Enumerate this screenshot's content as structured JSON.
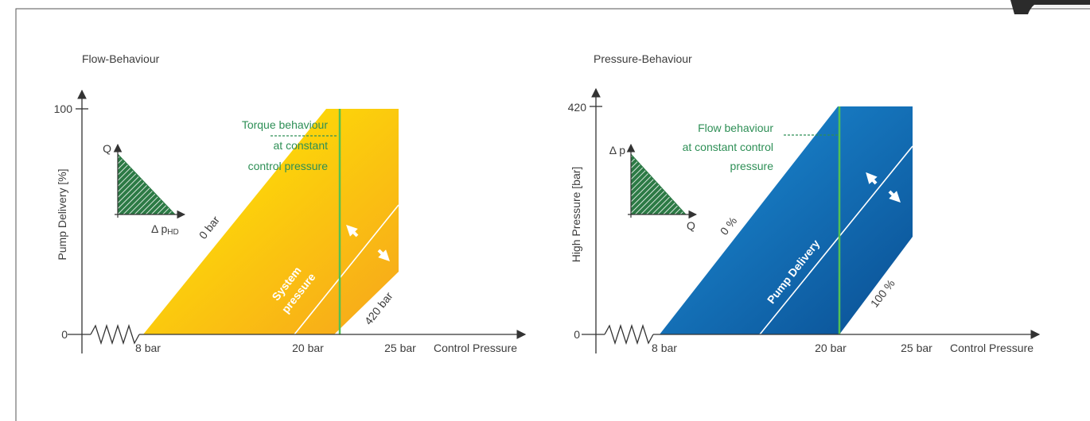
{
  "panels": [
    {
      "title": "Flow-Behaviour",
      "y_axis_label": "Pump Delivery [%]",
      "y_ticks": [
        "100",
        "0"
      ],
      "x_ticks": [
        "8 bar",
        "20 bar",
        "25 bar"
      ],
      "x_axis_label": "Control Pressure",
      "annotation": [
        "Torque behaviour",
        "at constant",
        "control pressure"
      ],
      "inset": {
        "y_label": "Q",
        "x_label_main": "Δ p",
        "x_label_sub": "HD"
      },
      "line_labels": {
        "start": "0 bar",
        "end": "420 bar",
        "middle": [
          "System",
          "pressure"
        ]
      },
      "color_from": "#ffee00",
      "color_to": "#f7a51c"
    },
    {
      "title": "Pressure-Behaviour",
      "y_axis_label": "High Pressure [bar]",
      "y_ticks": [
        "420",
        "0"
      ],
      "x_ticks": [
        "8 bar",
        "20 bar",
        "25 bar"
      ],
      "x_axis_label": "Control Pressure",
      "annotation": [
        "Flow behaviour",
        "at constant control",
        "pressure"
      ],
      "inset": {
        "y_label": "Δ p",
        "x_label_main": "Q",
        "x_label_sub": ""
      },
      "line_labels": {
        "start": "0 %",
        "end": "100 %",
        "middle": [
          "Pump Delivery"
        ]
      },
      "color_from": "#1d8fd8",
      "color_to": "#0a4f93"
    }
  ],
  "colors": {
    "axis": "#333333",
    "green_line": "#52c055",
    "annotation": "#2e8f56",
    "inset_hatch": "#2c7a45"
  }
}
